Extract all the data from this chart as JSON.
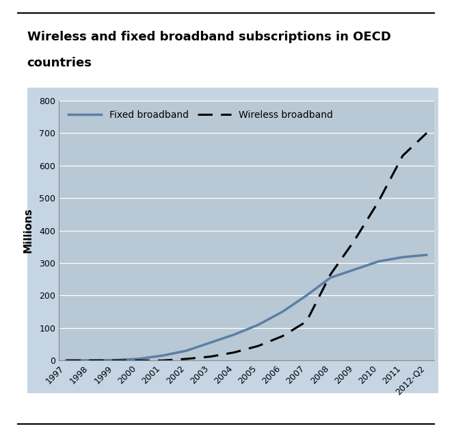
{
  "title_line1": "Wireless and fixed broadband subscriptions in OECD",
  "title_line2": "countries",
  "ylabel": "Millions",
  "xlabels": [
    "1997",
    "1998",
    "1999",
    "2000",
    "2001",
    "2002",
    "2003",
    "2004",
    "2005",
    "2006",
    "2007",
    "2008",
    "2009",
    "2010",
    "2011",
    "2012-Q2"
  ],
  "fixed_broadband": [
    0.5,
    0.8,
    1.5,
    5,
    15,
    30,
    55,
    80,
    110,
    150,
    200,
    255,
    280,
    305,
    318,
    325
  ],
  "wireless_broadband": [
    0,
    0,
    0,
    0,
    0,
    5,
    12,
    25,
    45,
    75,
    120,
    265,
    370,
    490,
    630,
    700
  ],
  "fixed_color": "#5b7fa6",
  "wireless_color": "#000000",
  "plot_bg_color": "#c5d5e4",
  "axes_bg_color": "#b8c8d4",
  "outer_bg_color": "#ffffff",
  "ylim": [
    0,
    800
  ],
  "yticks": [
    0,
    100,
    200,
    300,
    400,
    500,
    600,
    700,
    800
  ],
  "legend_fixed_label": "Fixed broadband",
  "legend_wireless_label": "Wireless broadband",
  "title_fontsize": 13,
  "axis_fontsize": 9,
  "legend_fontsize": 10
}
